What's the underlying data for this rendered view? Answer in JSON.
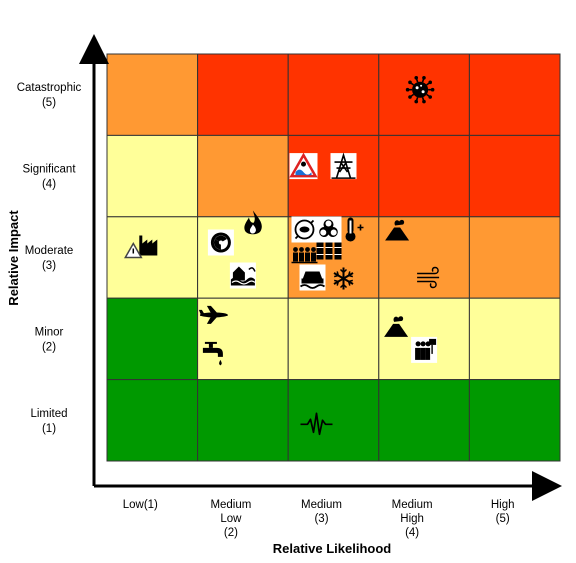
{
  "chart_data": {
    "type": "heatmap",
    "title": "",
    "xlabel": "Relative Likelihood",
    "ylabel": "Relative Impact",
    "x_categories": [
      {
        "lines": [
          "Low(1)"
        ]
      },
      {
        "lines": [
          "Medium",
          "Low",
          "(2)"
        ]
      },
      {
        "lines": [
          "Medium",
          "(3)"
        ]
      },
      {
        "lines": [
          "Medium",
          "High",
          "(4)"
        ]
      },
      {
        "lines": [
          "High",
          "(5)"
        ]
      }
    ],
    "y_categories": [
      {
        "lines": [
          "Catastrophic",
          "(5)"
        ]
      },
      {
        "lines": [
          "Significant",
          "(4)"
        ]
      },
      {
        "lines": [
          "Moderate",
          "(3)"
        ]
      },
      {
        "lines": [
          "Minor",
          "(2)"
        ]
      },
      {
        "lines": [
          "Limited",
          "(1)"
        ]
      }
    ],
    "palette": {
      "red": "#ff3300",
      "dark_orange": "#ff9933",
      "yellow": "#ffff99",
      "green": "#009900",
      "grid": "#333333"
    },
    "cells": [
      [
        "dark_orange",
        "red",
        "red",
        "red",
        "red"
      ],
      [
        "yellow",
        "dark_orange",
        "red",
        "red",
        "red"
      ],
      [
        "yellow",
        "yellow",
        "dark_orange",
        "dark_orange",
        "dark_orange"
      ],
      [
        "green",
        "yellow",
        "yellow",
        "yellow",
        "yellow"
      ],
      [
        "green",
        "green",
        "green",
        "green",
        "green"
      ]
    ],
    "hazards": [
      {
        "icon": "pandemic-virus-icon",
        "likelihood": 4,
        "impact": 5
      },
      {
        "icon": "flood-warning-sign-icon",
        "likelihood": 3,
        "impact": 4
      },
      {
        "icon": "power-pylon-icon",
        "likelihood": 3,
        "impact": 4
      },
      {
        "icon": "industrial-accident-icon",
        "likelihood": 1,
        "impact": 3
      },
      {
        "icon": "radiation-icon",
        "likelihood": 2,
        "impact": 3
      },
      {
        "icon": "fire-icon",
        "likelihood": 2,
        "impact": 3
      },
      {
        "icon": "coastal-flooding-icon",
        "likelihood": 2,
        "impact": 3
      },
      {
        "icon": "animal-disease-icon",
        "likelihood": 3,
        "impact": 3
      },
      {
        "icon": "biohazard-icon",
        "likelihood": 3,
        "impact": 3
      },
      {
        "icon": "heatwave-thermometer-icon",
        "likelihood": 3,
        "impact": 3
      },
      {
        "icon": "public-disorder-crowd-icon",
        "likelihood": 3,
        "impact": 3
      },
      {
        "icon": "fuel-shortage-icon",
        "likelihood": 3,
        "impact": 3
      },
      {
        "icon": "flooded-car-icon",
        "likelihood": 3,
        "impact": 3
      },
      {
        "icon": "snow-icon",
        "likelihood": 3,
        "impact": 3
      },
      {
        "icon": "volcano-icon",
        "likelihood": 4,
        "impact": 3
      },
      {
        "icon": "storm-wind-icon",
        "likelihood": 4,
        "impact": 3
      },
      {
        "icon": "aviation-accident-icon",
        "likelihood": 2,
        "impact": 2
      },
      {
        "icon": "water-supply-icon",
        "likelihood": 2,
        "impact": 2
      },
      {
        "icon": "volcano-icon",
        "likelihood": 4,
        "impact": 2
      },
      {
        "icon": "industrial-action-icon",
        "likelihood": 4,
        "impact": 2
      },
      {
        "icon": "earthquake-seismic-icon",
        "likelihood": 3,
        "impact": 1
      }
    ]
  }
}
